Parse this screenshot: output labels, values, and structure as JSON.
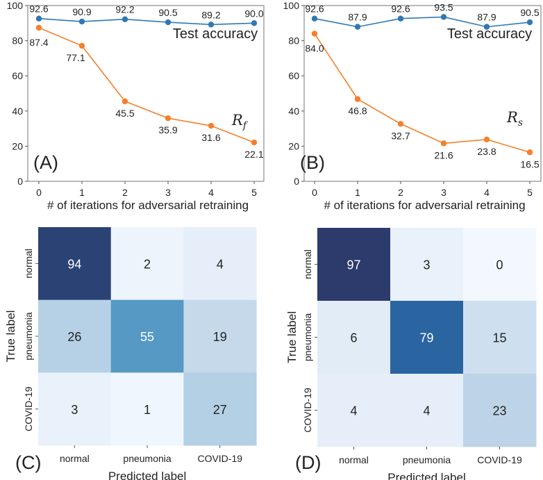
{
  "chart_data": [
    {
      "type": "line",
      "panel": "(A)",
      "x": [
        0,
        1,
        2,
        3,
        4,
        5
      ],
      "xlabel": "# of iterations for adversarial retraining",
      "ylabel": "",
      "ylim": [
        0,
        100
      ],
      "yticks": [
        "0",
        "20",
        "40",
        "60",
        "80",
        "100"
      ],
      "xticks": [
        "0",
        "1",
        "2",
        "3",
        "4",
        "5"
      ],
      "grid": false,
      "series": [
        {
          "name": "Test accuracy",
          "color": "#2f78b4",
          "values": [
            92.6,
            90.9,
            92.2,
            90.5,
            89.2,
            90.0
          ],
          "labels": [
            "92.6",
            "90.9",
            "92.2",
            "90.5",
            "89.2",
            "90.0"
          ]
        },
        {
          "name": "R_f",
          "display_base": "R",
          "display_sub": "f",
          "color": "#f57f2a",
          "values": [
            87.4,
            77.1,
            45.5,
            35.9,
            31.6,
            22.1
          ],
          "labels": [
            "87.4",
            "77.1",
            "45.5",
            "35.9",
            "31.6",
            "22.1"
          ]
        }
      ]
    },
    {
      "type": "line",
      "panel": "(B)",
      "x": [
        0,
        1,
        2,
        3,
        4,
        5
      ],
      "xlabel": "# of iterations for adversarial retraining",
      "ylabel": "",
      "ylim": [
        0,
        100
      ],
      "yticks": [
        "0",
        "20",
        "40",
        "60",
        "80",
        "100"
      ],
      "xticks": [
        "0",
        "1",
        "2",
        "3",
        "4",
        "5"
      ],
      "grid": false,
      "series": [
        {
          "name": "Test accuracy",
          "color": "#2f78b4",
          "values": [
            92.6,
            87.9,
            92.6,
            93.5,
            87.9,
            90.5
          ],
          "labels": [
            "92.6",
            "87.9",
            "92.6",
            "93.5",
            "87.9",
            "90.5"
          ]
        },
        {
          "name": "R_s",
          "display_base": "R",
          "display_sub": "s",
          "color": "#f57f2a",
          "values": [
            84.0,
            46.8,
            32.7,
            21.6,
            23.8,
            16.5
          ],
          "labels": [
            "84.0",
            "46.8",
            "32.7",
            "21.6",
            "23.8",
            "16.5"
          ]
        }
      ]
    },
    {
      "type": "heatmap",
      "panel": "(C)",
      "xlabel": "Predicted label",
      "ylabel": "True label",
      "x_categories": [
        "normal",
        "pneumonia",
        "COVID-19"
      ],
      "y_categories": [
        "normal",
        "pneumonia",
        "COVID-19"
      ],
      "values": [
        [
          94,
          2,
          4
        ],
        [
          26,
          55,
          19
        ],
        [
          3,
          1,
          27
        ]
      ],
      "labels": [
        [
          "94",
          "2",
          "4"
        ],
        [
          "26",
          "55",
          "19"
        ],
        [
          "3",
          "1",
          "27"
        ]
      ]
    },
    {
      "type": "heatmap",
      "panel": "(D)",
      "xlabel": "Predicted label",
      "ylabel": "True label",
      "x_categories": [
        "normal",
        "pneumonia",
        "COVID-19"
      ],
      "y_categories": [
        "normal",
        "pneumonia",
        "COVID-19"
      ],
      "values": [
        [
          97,
          3,
          0
        ],
        [
          6,
          79,
          15
        ],
        [
          4,
          4,
          23
        ]
      ],
      "labels": [
        [
          "97",
          "3",
          "0"
        ],
        [
          "6",
          "79",
          "15"
        ],
        [
          "4",
          "4",
          "23"
        ]
      ]
    }
  ]
}
